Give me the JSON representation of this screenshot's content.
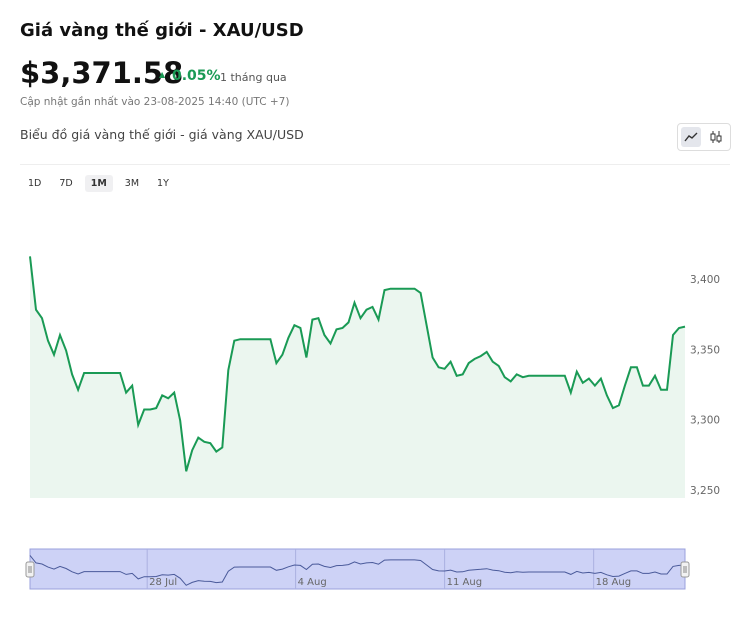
{
  "header": {
    "title": "Giá vàng thế giới - XAU/USD",
    "price": "$3,371.58",
    "change": "0.05%",
    "period": "1 tháng qua",
    "updated": "Cập nhật gần nhất vào 23-08-2025 14:40 (UTC +7)"
  },
  "chart_data": {
    "type": "area",
    "title": "Biểu đồ giá vàng thế giới - giá vàng XAU/USD",
    "ranges": [
      "1D",
      "7D",
      "1M",
      "3M",
      "1Y"
    ],
    "active_range": "1M",
    "color": "#1a9a55",
    "fill": "#ebf6ef",
    "values": [
      3417,
      3379,
      3373,
      3357,
      3347,
      3361,
      3350,
      3333,
      3322,
      3334,
      3334,
      3334,
      3334,
      3334,
      3334,
      3334,
      3320,
      3325,
      3297,
      3308,
      3308,
      3309,
      3318,
      3316,
      3320,
      3300,
      3264,
      3279,
      3288,
      3285,
      3284,
      3278,
      3281,
      3336,
      3357,
      3358,
      3358,
      3358,
      3358,
      3358,
      3358,
      3341,
      3347,
      3359,
      3368,
      3366,
      3345,
      3372,
      3373,
      3361,
      3355,
      3365,
      3366,
      3370,
      3384,
      3373,
      3379,
      3381,
      3372,
      3393,
      3394,
      3394,
      3394,
      3394,
      3394,
      3391,
      3368,
      3345,
      3338,
      3337,
      3342,
      3332,
      3333,
      3341,
      3344,
      3346,
      3349,
      3342,
      3339,
      3331,
      3328,
      3333,
      3331,
      3332,
      3332,
      3332,
      3332,
      3332,
      3332,
      3332,
      3320,
      3335,
      3327,
      3330,
      3325,
      3330,
      3318,
      3309,
      3311,
      3325,
      3338,
      3338,
      3325,
      3325,
      3332,
      3322,
      3322,
      3361,
      3366,
      3367
    ],
    "ylim": [
      3245,
      3450
    ],
    "yticks": [
      {
        "value": 3250,
        "label": "3,250"
      },
      {
        "value": 3300,
        "label": "3,300"
      },
      {
        "value": 3350,
        "label": "3,350"
      },
      {
        "value": 3400,
        "label": "3,400"
      }
    ],
    "navigator": {
      "xlim": [
        0,
        109
      ],
      "xticks": [
        {
          "value": 19.5,
          "label": "28 Jul"
        },
        {
          "value": 44.2,
          "label": "4 Aug"
        },
        {
          "value": 69,
          "label": "11 Aug"
        },
        {
          "value": 93.8,
          "label": "18 Aug"
        }
      ]
    }
  }
}
